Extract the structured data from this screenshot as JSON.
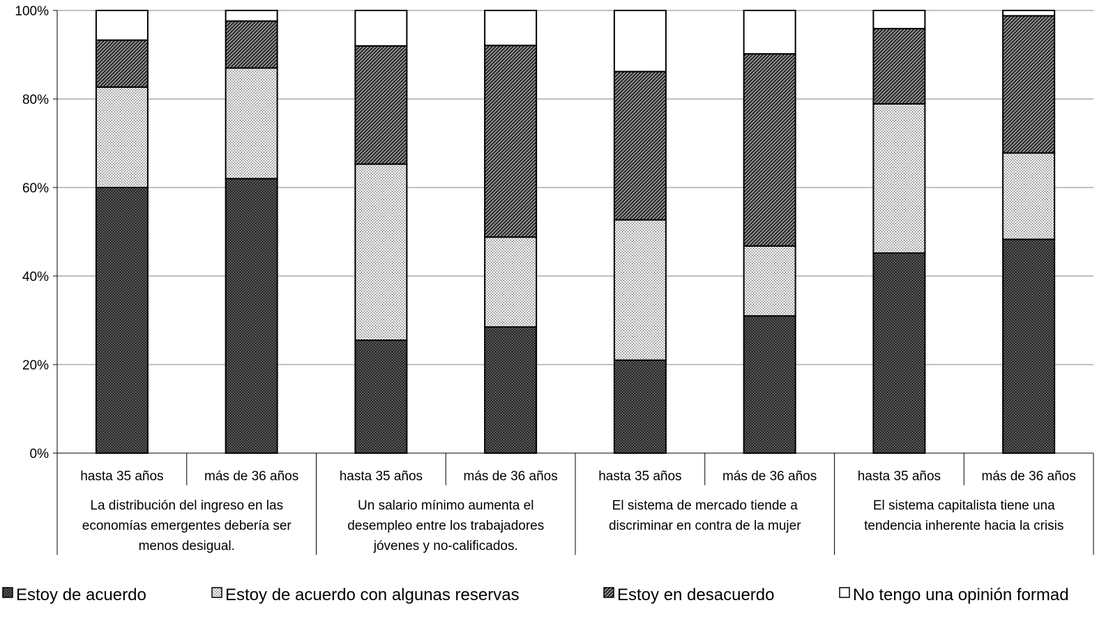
{
  "chart_data": {
    "type": "bar",
    "stacked": true,
    "percent": true,
    "title": "",
    "xlabel": "",
    "ylabel": "",
    "ylim": [
      0,
      100
    ],
    "yticks": [
      "0%",
      "20%",
      "40%",
      "60%",
      "80%",
      "100%"
    ],
    "grid": true,
    "legend_position": "bottom",
    "groups": [
      {
        "label_lines": [
          "La distribución del ingreso en las",
          "economías emergentes debería ser",
          "menos desigual."
        ]
      },
      {
        "label_lines": [
          "Un salario mínimo aumenta el",
          "desempleo entre los trabajadores",
          "jóvenes y no-calificados."
        ]
      },
      {
        "label_lines": [
          "El sistema de mercado tiende a",
          "discriminar en contra de la mujer"
        ]
      },
      {
        "label_lines": [
          "El sistema capitalista tiene una",
          "tendencia inherente hacia la crisis"
        ]
      }
    ],
    "categories": [
      "hasta 35 años",
      "más de 36 años",
      "hasta 35 años",
      "más de 36 años",
      "hasta 35 años",
      "más de 36 años",
      "hasta 35 años",
      "más de 36 años"
    ],
    "series": [
      {
        "name": "Estoy de acuerdo",
        "pattern": "dark-dots",
        "values": [
          60,
          62,
          25.5,
          28.5,
          21,
          31,
          45.2,
          48.3
        ]
      },
      {
        "name": "Estoy de acuerdo con algunas reservas",
        "pattern": "light-dots",
        "values": [
          22.7,
          25,
          39.8,
          20.3,
          31.7,
          15.8,
          33.7,
          19.5
        ]
      },
      {
        "name": "Estoy en desacuerdo",
        "pattern": "diagonal",
        "values": [
          10.6,
          10.6,
          26.7,
          43.3,
          33.5,
          43.4,
          17,
          31
        ]
      },
      {
        "name": "No tengo una opinión formad",
        "pattern": "white",
        "values": [
          6.7,
          2.4,
          8,
          7.9,
          13.8,
          9.8,
          4.1,
          1.2
        ]
      }
    ]
  }
}
